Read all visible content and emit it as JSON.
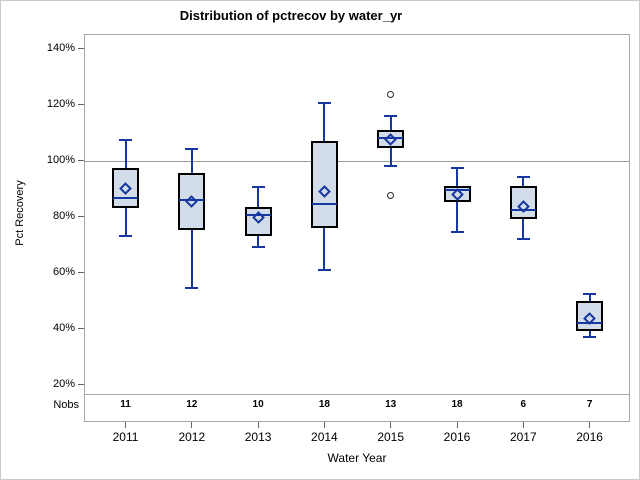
{
  "colors": {
    "box_fill": "#d3dce9",
    "box_border": "#000000",
    "line_blue": "#16379f",
    "outlier_stroke": "#2a2a2a",
    "frame_gray": "#a6a6a6",
    "reference_line_gray": "#9b9b9b",
    "tick_gray": "#666666",
    "canvas_border": "#c9c9c9"
  },
  "chart_data": {
    "type": "boxplot",
    "title": "Distribution of pctrecov by water_yr",
    "xlabel": "Water Year",
    "ylabel": "Pct Recovery",
    "nobs_label": "Nobs",
    "ylim": [
      20,
      140
    ],
    "y_tick_step": 20,
    "reference_line": 100,
    "grid": "off",
    "y_ticks": [
      {
        "label": "140%",
        "value": 140
      },
      {
        "label": "120%",
        "value": 120
      },
      {
        "label": "100%",
        "value": 100
      },
      {
        "label": "80%",
        "value": 80
      },
      {
        "label": "60%",
        "value": 60
      },
      {
        "label": "40%",
        "value": 40
      },
      {
        "label": "20%",
        "value": 20
      }
    ],
    "categories": [
      "2011",
      "2012",
      "2013",
      "2014",
      "2015",
      "2016",
      "2017",
      "2016"
    ],
    "nobs": [
      11,
      12,
      10,
      18,
      13,
      18,
      6,
      7
    ],
    "groups": [
      {
        "category": "2011",
        "nobs": "11",
        "whisker_low": 73,
        "q1": 83,
        "median": 86.5,
        "mean": 90,
        "q3": 97.5,
        "whisker_high": 107.5,
        "outliers": []
      },
      {
        "category": "2012",
        "nobs": "12",
        "whisker_low": 54.5,
        "q1": 75,
        "median": 86,
        "mean": 85.5,
        "q3": 95.5,
        "whisker_high": 104,
        "outliers": []
      },
      {
        "category": "2013",
        "nobs": "10",
        "whisker_low": 69,
        "q1": 73,
        "median": 80.5,
        "mean": 79.5,
        "q3": 83.5,
        "whisker_high": 90.5,
        "outliers": []
      },
      {
        "category": "2014",
        "nobs": "18",
        "whisker_low": 61,
        "q1": 76,
        "median": 84.5,
        "mean": 89,
        "q3": 107,
        "whisker_high": 120.5,
        "outliers": []
      },
      {
        "category": "2015",
        "nobs": "13",
        "whisker_low": 98,
        "q1": 104.5,
        "median": 108,
        "mean": 107.5,
        "q3": 111,
        "whisker_high": 116,
        "outliers": [
          123.5,
          87.5
        ]
      },
      {
        "category": "2016",
        "nobs": "18",
        "whisker_low": 74.5,
        "q1": 85,
        "median": 89.5,
        "mean": 88,
        "q3": 91,
        "whisker_high": 97.5,
        "outliers": []
      },
      {
        "category": "2017",
        "nobs": "6",
        "whisker_low": 72,
        "q1": 79,
        "median": 82.5,
        "mean": 83.5,
        "q3": 91,
        "whisker_high": 94,
        "outliers": []
      },
      {
        "category": "2016",
        "nobs": "7",
        "whisker_low": 37,
        "q1": 39,
        "median": 42,
        "mean": 43.5,
        "q3": 50,
        "whisker_high": 52.5,
        "outliers": []
      }
    ]
  }
}
